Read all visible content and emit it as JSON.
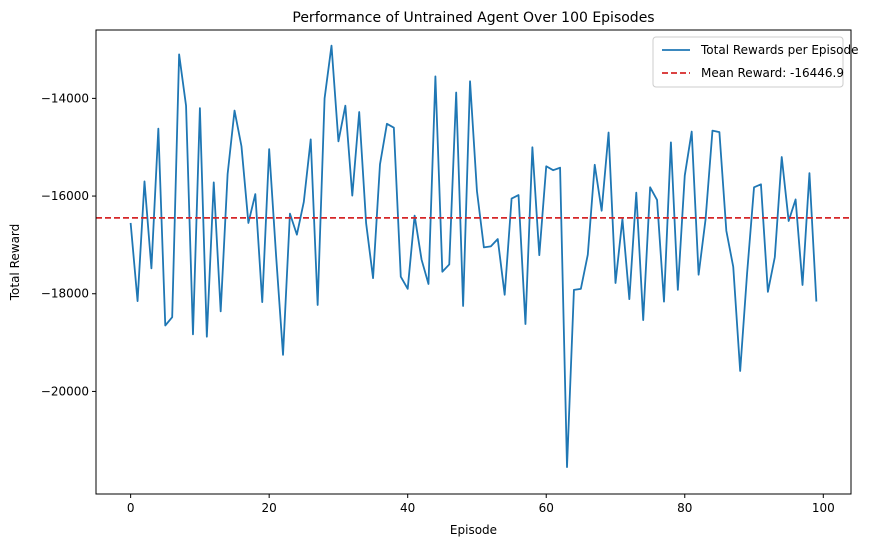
{
  "chart_data": {
    "type": "line",
    "title": "Performance of Untrained Agent Over 100 Episodes",
    "xlabel": "Episode",
    "ylabel": "Total Reward",
    "xlim": [
      -5,
      104
    ],
    "ylim": [
      -22100,
      -12600
    ],
    "xticks": [
      0,
      20,
      40,
      60,
      80,
      100
    ],
    "yticks": [
      -20000,
      -18000,
      -16000,
      -14000
    ],
    "grid": false,
    "legend_position": "top-right",
    "series": [
      {
        "name": "Total Rewards per Episode",
        "color": "#1f77b4",
        "style": "solid",
        "x": [
          0,
          1,
          2,
          3,
          4,
          5,
          6,
          7,
          8,
          9,
          10,
          11,
          12,
          13,
          14,
          15,
          16,
          17,
          18,
          19,
          20,
          21,
          22,
          23,
          24,
          25,
          26,
          27,
          28,
          29,
          30,
          31,
          32,
          33,
          34,
          35,
          36,
          37,
          38,
          39,
          40,
          41,
          42,
          43,
          44,
          45,
          46,
          47,
          48,
          49,
          50,
          51,
          52,
          53,
          54,
          55,
          56,
          57,
          58,
          59,
          60,
          61,
          62,
          63,
          64,
          65,
          66,
          67,
          68,
          69,
          70,
          71,
          72,
          73,
          74,
          75,
          76,
          77,
          78,
          79,
          80,
          81,
          82,
          83,
          84,
          85,
          86,
          87,
          88,
          89,
          90,
          91,
          92,
          93,
          94,
          95,
          96,
          97,
          98,
          99
        ],
        "y": [
          -16550,
          -18150,
          -15700,
          -17480,
          -14620,
          -18650,
          -18480,
          -13100,
          -14150,
          -18830,
          -14200,
          -18880,
          -15720,
          -18360,
          -15550,
          -14250,
          -14980,
          -16550,
          -15960,
          -18170,
          -15040,
          -17220,
          -19250,
          -16360,
          -16790,
          -16120,
          -14840,
          -18230,
          -14000,
          -12920,
          -14880,
          -14150,
          -15990,
          -14280,
          -16560,
          -17680,
          -15350,
          -14520,
          -14600,
          -17650,
          -17900,
          -16400,
          -17300,
          -17800,
          -13550,
          -17550,
          -17400,
          -13880,
          -18250,
          -13650,
          -15900,
          -17050,
          -17030,
          -16880,
          -18020,
          -16050,
          -15980,
          -18620,
          -15000,
          -17210,
          -15390,
          -15470,
          -15420,
          -21550,
          -17920,
          -17900,
          -17200,
          -15360,
          -16300,
          -14700,
          -17780,
          -16470,
          -18110,
          -15930,
          -18540,
          -15820,
          -16080,
          -18160,
          -14900,
          -17920,
          -15580,
          -14680,
          -17610,
          -16480,
          -14660,
          -14690,
          -16710,
          -17450,
          -19580,
          -17580,
          -15820,
          -15760,
          -17960,
          -17250,
          -15200,
          -16510,
          -16070,
          -17820,
          -15530,
          -18160
        ]
      },
      {
        "name": "Mean Reward: -16446.9",
        "color": "#d62728",
        "style": "dashed",
        "value": -16446.9
      }
    ]
  }
}
